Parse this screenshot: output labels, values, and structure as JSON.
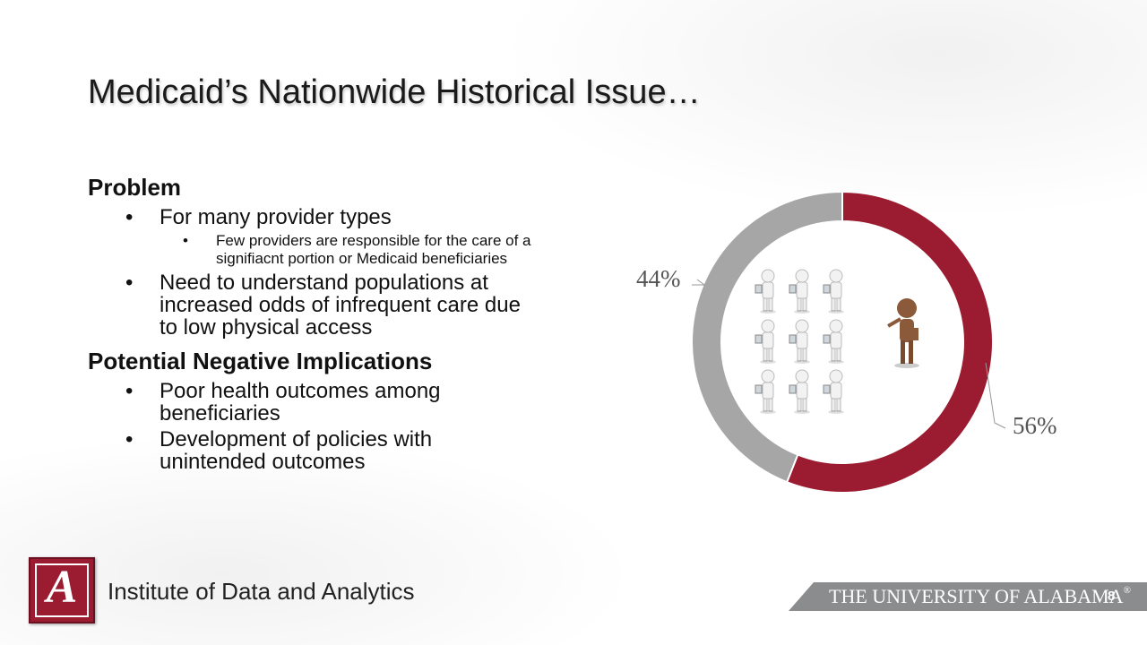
{
  "slide": {
    "title": "Medicaid’s Nationwide Historical Issue…",
    "page_number": "8"
  },
  "content": {
    "problem_heading": "Problem",
    "problem_item_1": "For many provider types",
    "problem_subitem_1": "Few providers are responsible for the care of a signifiacnt portion or Medicaid beneficiaries",
    "problem_item_2": "Need to understand populations at increased odds of infrequent care due to low physical access",
    "implications_heading": "Potential Negative Implications",
    "implication_item_1": "Poor health outcomes among beneficiaries",
    "implication_item_2": "Development of policies with unintended outcomes"
  },
  "chart_data": {
    "type": "pie",
    "variant": "donut",
    "slices": [
      {
        "label": "56%",
        "value": 56,
        "color": "#9b1b30"
      },
      {
        "label": "44%",
        "value": 44,
        "color": "#a6a6a6"
      }
    ],
    "center_illustration": "nine-white-figures-and-one-brown-figure"
  },
  "footer": {
    "logo_letter": "A",
    "institute_name": "Institute of Data and Analytics",
    "university_name": "THE UNIVERSITY OF ALABAMA",
    "registered_mark": "®"
  }
}
